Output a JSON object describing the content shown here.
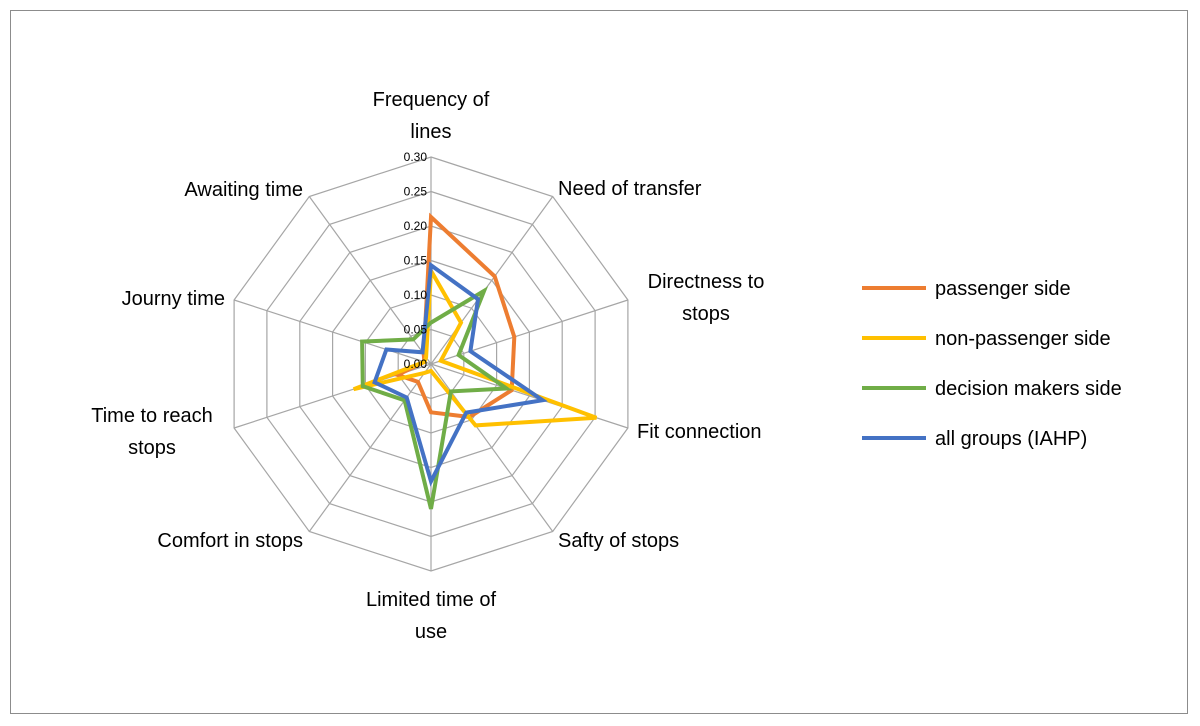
{
  "chart_data": {
    "type": "radar",
    "title": "",
    "axes": [
      [
        "Frequency of",
        "lines"
      ],
      [
        "Need of transfer"
      ],
      [
        "Directness to",
        "stops"
      ],
      [
        "Fit connection"
      ],
      [
        "Safty of stops"
      ],
      [
        "Limited time of",
        "use"
      ],
      [
        "Comfort in stops"
      ],
      [
        "Time to reach",
        "stops"
      ],
      [
        "Journy time"
      ],
      [
        "Awaiting time"
      ]
    ],
    "range": [
      0,
      0.3
    ],
    "ticks": [
      "0.00",
      "0.05",
      "0.10",
      "0.15",
      "0.20",
      "0.25",
      "0.30"
    ],
    "series": [
      {
        "name": "passenger side",
        "color": "#ED7D31",
        "values": [
          0.213,
          0.157,
          0.127,
          0.123,
          0.095,
          0.07,
          0.032,
          0.051,
          0.01,
          0.018
        ]
      },
      {
        "name": "non-passenger side",
        "color": "#FFC000",
        "values": [
          0.135,
          0.074,
          0.015,
          0.252,
          0.11,
          0.01,
          0.016,
          0.118,
          0.01,
          0.012
        ]
      },
      {
        "name": "decision makers side",
        "color": "#70AD47",
        "values": [
          0.06,
          0.131,
          0.042,
          0.115,
          0.049,
          0.21,
          0.065,
          0.104,
          0.105,
          0.044
        ]
      },
      {
        "name": "all groups (IAHP)",
        "color": "#4472C4",
        "values": [
          0.143,
          0.116,
          0.06,
          0.17,
          0.087,
          0.17,
          0.06,
          0.086,
          0.068,
          0.021
        ]
      }
    ],
    "legend_position": "right"
  }
}
